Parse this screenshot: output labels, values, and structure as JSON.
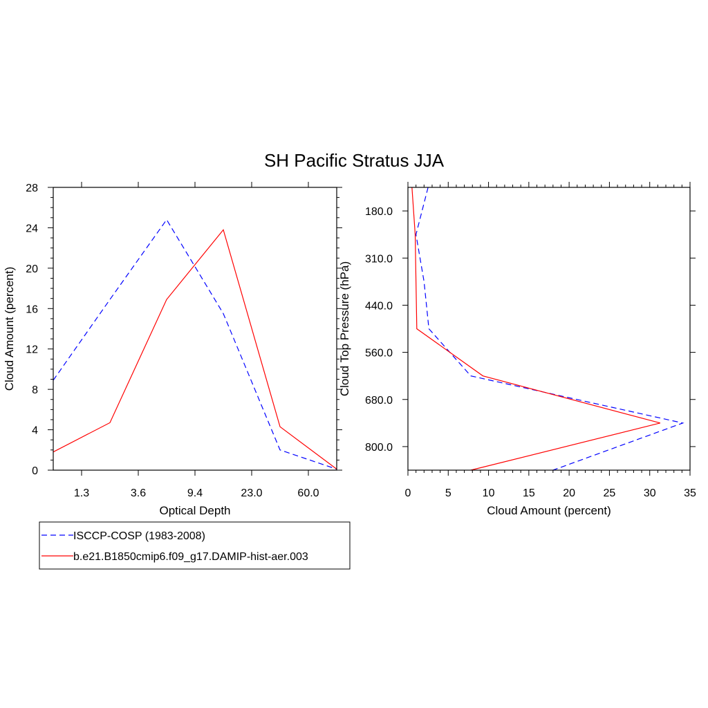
{
  "figure": {
    "title": "SH Pacific Stratus JJA"
  },
  "legend": {
    "entries": [
      {
        "label": "ISCCP-COSP (1983-2008)",
        "color": "#0000ff",
        "dash": "dashed"
      },
      {
        "label": "b.e21.B1850cmip6.f09_g17.DAMIP-hist-aer.003",
        "color": "#ff0000",
        "dash": "solid"
      }
    ]
  },
  "chart_data": [
    {
      "type": "line",
      "xlabel": "Optical Depth",
      "ylabel": "Cloud Amount (percent)",
      "ylim": [
        0,
        28
      ],
      "yticks": [
        "0",
        "4",
        "8",
        "12",
        "16",
        "20",
        "24",
        "28"
      ],
      "xtick_labels": [
        "1.3",
        "3.6",
        "9.4",
        "23.0",
        "60.0"
      ],
      "x_bins": [
        1,
        2,
        3,
        4,
        5,
        6
      ],
      "series": [
        {
          "name": "ISCCP-COSP (1983-2008)",
          "color": "#0000ff",
          "dash": "dashed",
          "values": [
            8.9,
            16.9,
            24.8,
            15.5,
            2.0,
            0.1
          ]
        },
        {
          "name": "b.e21.B1850cmip6.f09_g17.DAMIP-hist-aer.003",
          "color": "#ff0000",
          "dash": "solid",
          "values": [
            1.8,
            4.7,
            16.9,
            23.8,
            4.3,
            0.1
          ]
        }
      ]
    },
    {
      "type": "line",
      "xlabel": "Cloud Amount (percent)",
      "ylabel": "Cloud Top Pressure (hPa)",
      "xlim": [
        0,
        35
      ],
      "xticks": [
        "0",
        "5",
        "10",
        "15",
        "20",
        "25",
        "30",
        "35"
      ],
      "ytick_labels": [
        "180.0",
        "310.0",
        "440.0",
        "560.0",
        "680.0",
        "800.0"
      ],
      "y_levels": [
        1,
        2,
        3,
        4,
        5,
        6,
        7
      ],
      "series": [
        {
          "name": "ISCCP-COSP (1983-2008)",
          "color": "#0000ff",
          "dash": "dashed",
          "values": [
            2.5,
            1.0,
            2.0,
            2.6,
            7.8,
            34.1,
            18.0
          ]
        },
        {
          "name": "b.e21.B1850cmip6.f09_g17.DAMIP-hist-aer.003",
          "color": "#ff0000",
          "dash": "solid",
          "values": [
            0.5,
            0.9,
            1.0,
            1.1,
            9.3,
            31.3,
            7.8
          ]
        }
      ]
    }
  ]
}
